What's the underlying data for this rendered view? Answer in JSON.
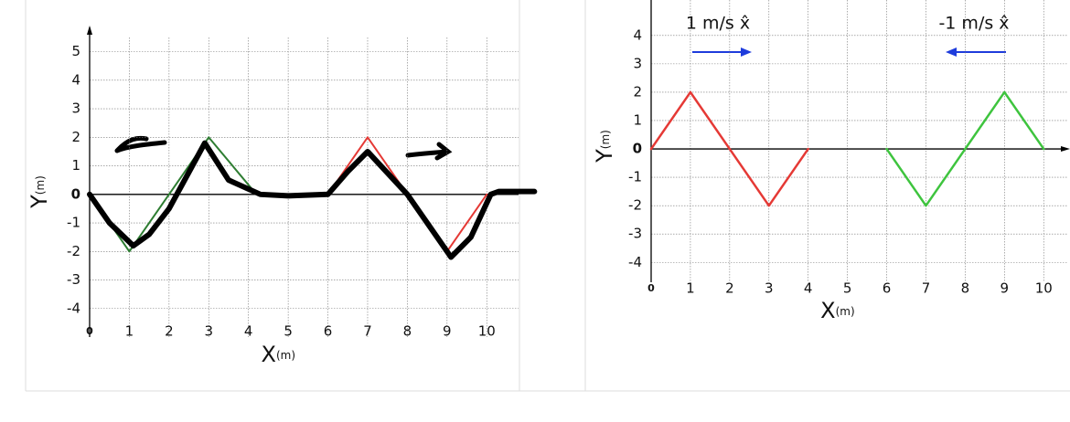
{
  "chart_data": [
    {
      "type": "line",
      "xlabel": "X",
      "xlabel_unit": "(m)",
      "ylabel": "Y",
      "ylabel_unit": "(m)",
      "xlim": [
        0,
        10.8
      ],
      "ylim": [
        -5,
        5.5
      ],
      "xticks": [
        0,
        1,
        2,
        3,
        4,
        5,
        6,
        7,
        8,
        9,
        10
      ],
      "yticks": [
        -4,
        -3,
        -2,
        -1,
        0,
        1,
        2,
        3,
        4,
        5
      ],
      "grid": true,
      "series": [
        {
          "color": "#2e7d32",
          "line_width": 2,
          "x": [
            0,
            1,
            3,
            4.2
          ],
          "values": [
            0,
            -2,
            2,
            0
          ]
        },
        {
          "color": "#e53935",
          "line_width": 2,
          "x": [
            6,
            7,
            9,
            10
          ],
          "values": [
            0,
            2,
            -2,
            0
          ]
        },
        {
          "color": "#000000",
          "line_width": 6,
          "x": [
            0,
            0.5,
            1.1,
            1.5,
            2,
            2.9,
            3.5,
            4.3,
            5,
            6,
            6.5,
            7,
            8,
            9.1,
            9.6,
            10.1,
            10.3,
            11.2
          ],
          "values": [
            0,
            -1,
            -1.8,
            -1.4,
            -0.5,
            1.8,
            0.5,
            0,
            -0.05,
            0,
            0.8,
            1.5,
            0,
            -2.2,
            -1.5,
            0,
            0.1,
            0.1
          ]
        }
      ]
    },
    {
      "type": "line",
      "xlabel": "X",
      "xlabel_unit": "(m)",
      "ylabel": "Y",
      "ylabel_unit": "(m)",
      "xlim": [
        0,
        10.6
      ],
      "ylim": [
        -4.7,
        5.25
      ],
      "xticks": [
        0,
        1,
        2,
        3,
        4,
        5,
        6,
        7,
        8,
        9,
        10
      ],
      "yticks": [
        -4,
        -3,
        -2,
        -1,
        0,
        1,
        2,
        3,
        4
      ],
      "grid": true,
      "annotations": [
        "1 m/s x̂",
        "-1 m/s x̂"
      ],
      "series": [
        {
          "color": "#e53935",
          "line_width": 2.5,
          "x": [
            0,
            1,
            2,
            3,
            4
          ],
          "values": [
            0,
            2,
            0,
            -2,
            0
          ]
        },
        {
          "color": "#3ec43e",
          "line_width": 2.5,
          "x": [
            6,
            7,
            8,
            9,
            10
          ],
          "values": [
            0,
            -2,
            0,
            2,
            0
          ]
        }
      ]
    }
  ]
}
